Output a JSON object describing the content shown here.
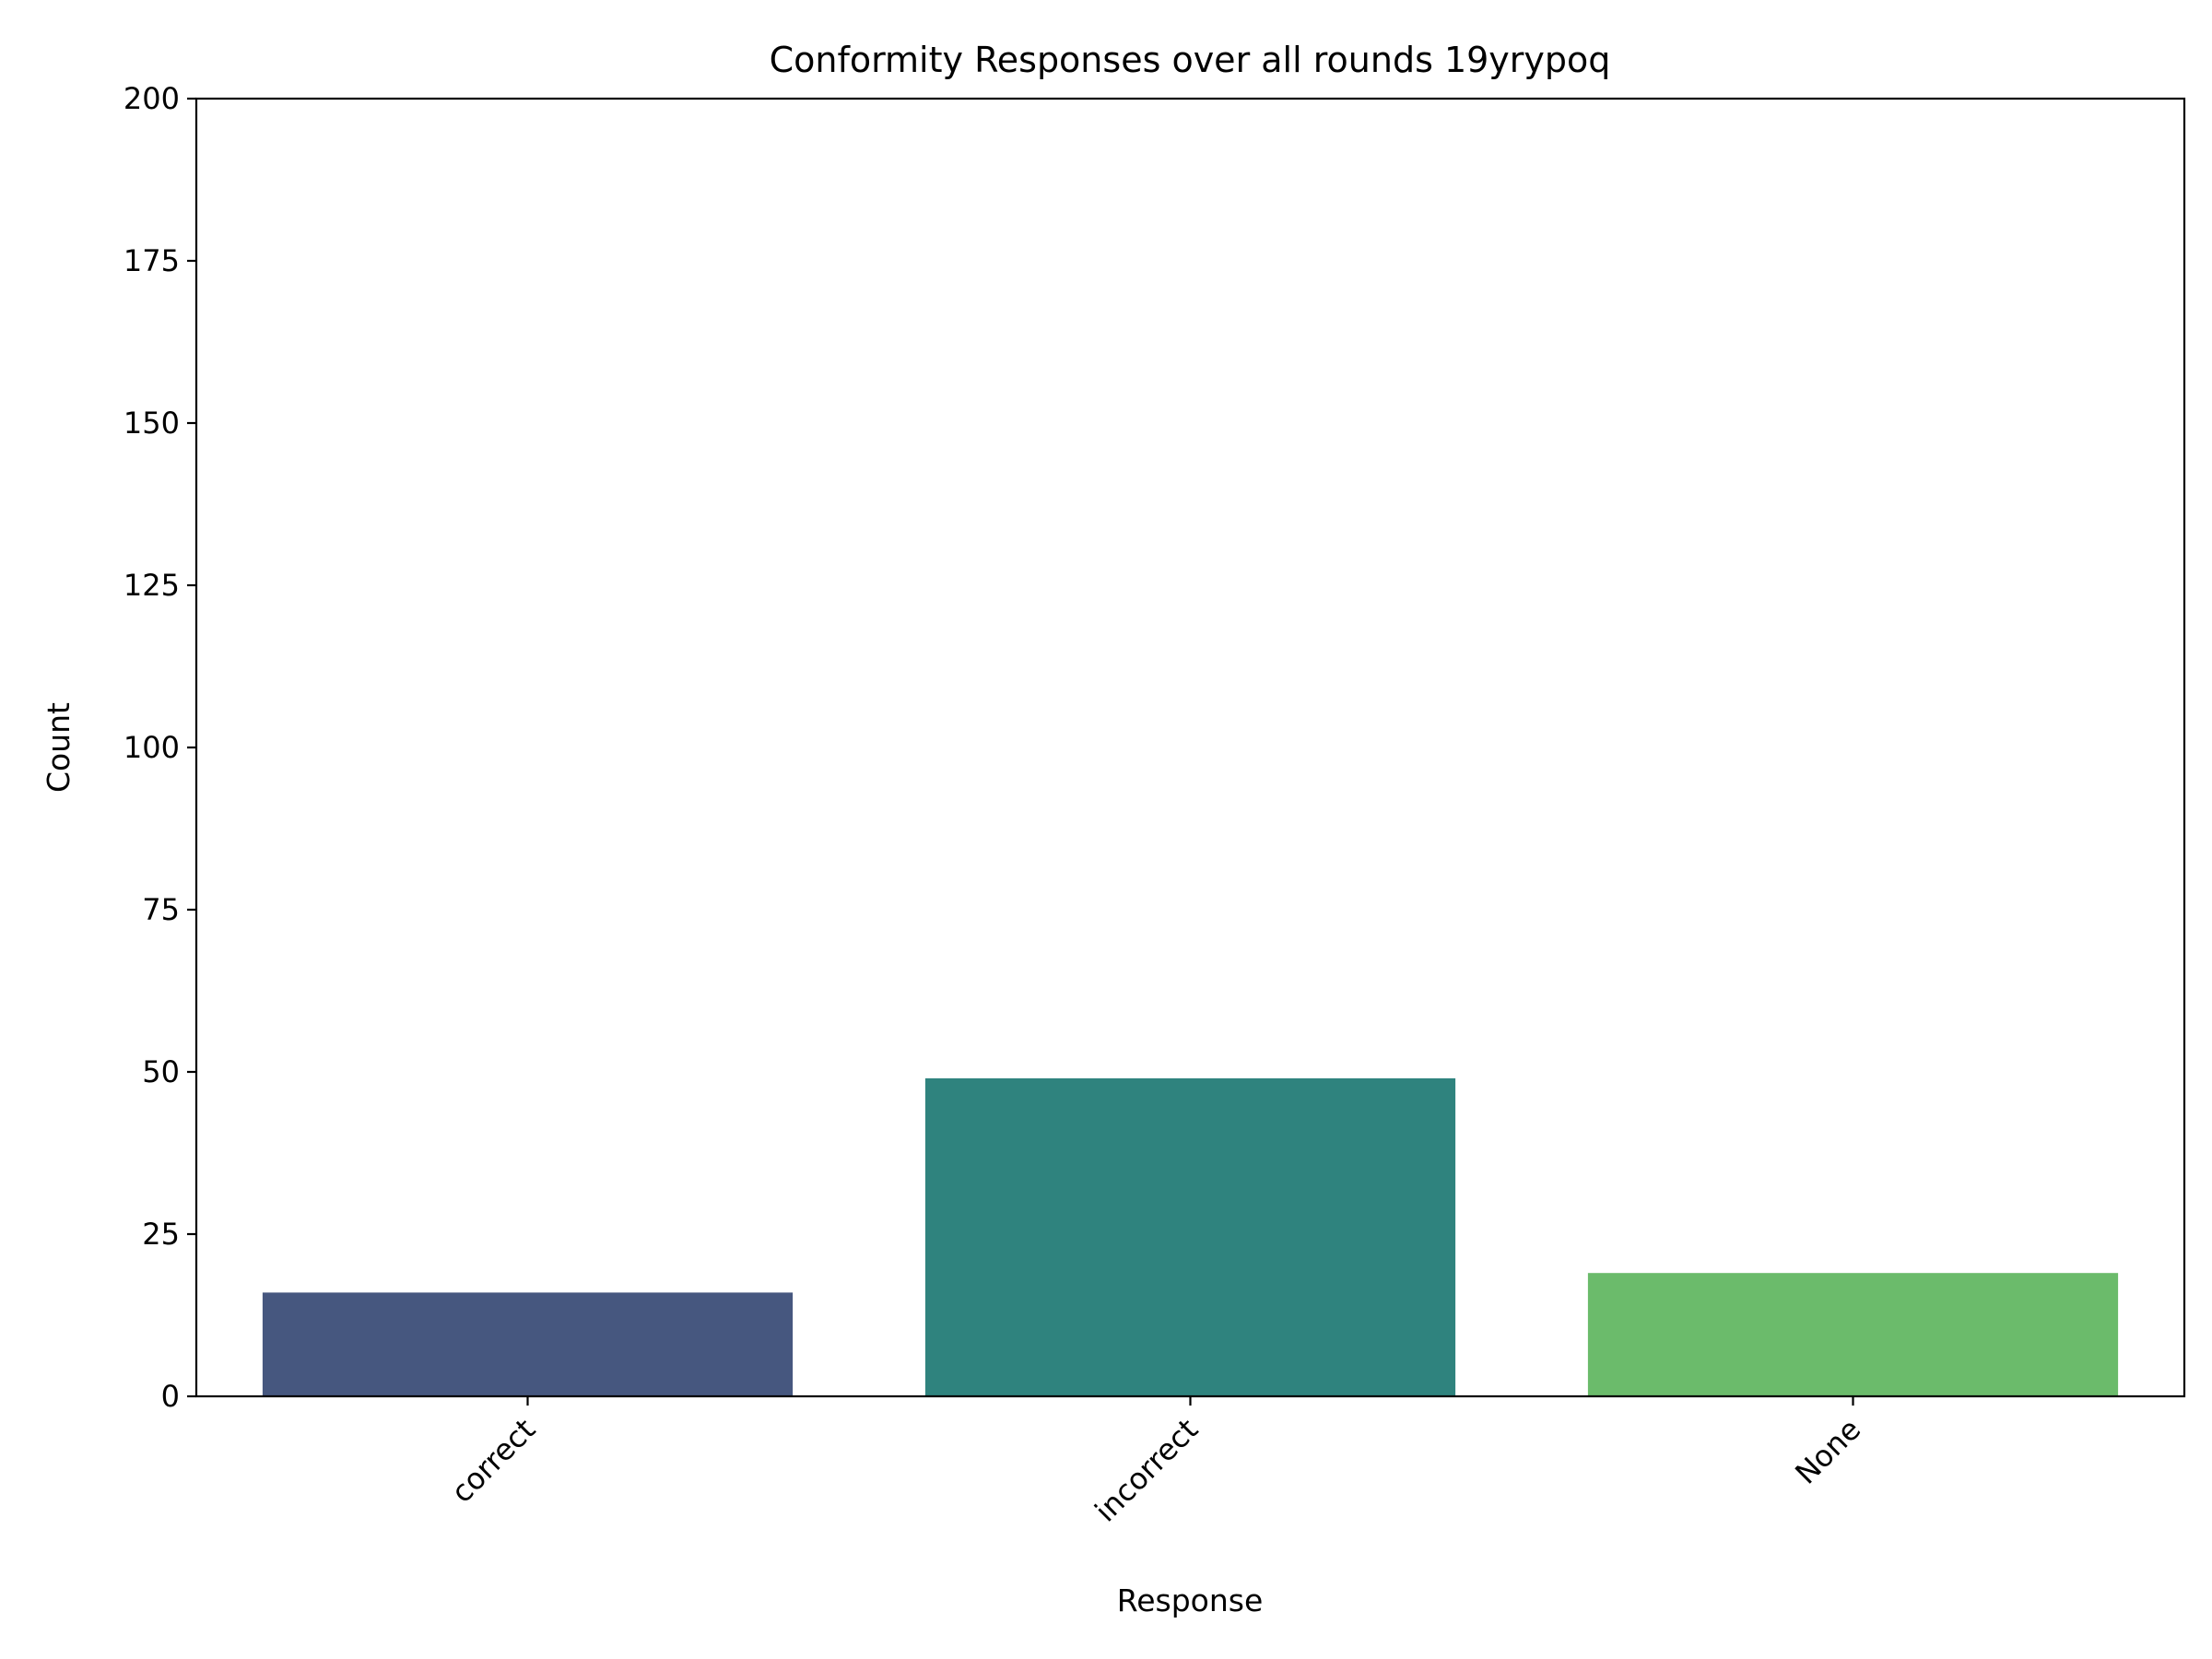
{
  "chart_data": {
    "type": "bar",
    "title": "Conformity Responses over all rounds 19yrypoq",
    "xlabel": "Response",
    "ylabel": "Count",
    "categories": [
      "correct",
      "incorrect",
      "None"
    ],
    "values": [
      16,
      49,
      19
    ],
    "colors": [
      "#46577f",
      "#2f837e",
      "#6bbb6b"
    ],
    "ylim": [
      0,
      200
    ],
    "yticks": [
      "0",
      "25",
      "50",
      "75",
      "100",
      "125",
      "150",
      "175",
      "200"
    ],
    "xtick_rotation": 45,
    "grid": false,
    "legend": "none"
  }
}
